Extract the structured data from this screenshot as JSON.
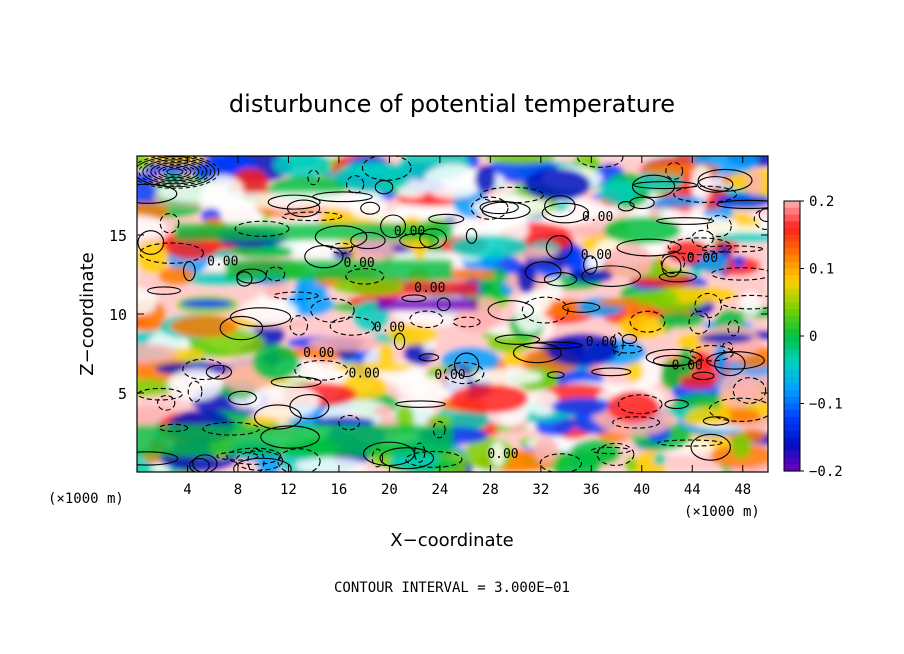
{
  "chart_data": {
    "type": "heatmap",
    "title": "disturbunce of potential temperature",
    "xlabel": "X−coordinate",
    "ylabel": "Z−coordinate",
    "x_unit_left": "(×1000 m)",
    "x_unit_right": "(×1000 m)",
    "xlim": [
      0,
      50
    ],
    "ylim": [
      0,
      20
    ],
    "x_ticks": [
      4,
      8,
      12,
      16,
      20,
      24,
      28,
      32,
      36,
      40,
      44,
      48
    ],
    "y_ticks": [
      5,
      10,
      15
    ],
    "colorbar": {
      "min": -0.2,
      "max": 0.2,
      "ticks": [
        0.2,
        0.1,
        0,
        -0.1,
        -0.2
      ],
      "tick_labels": [
        "0.2",
        "0.1",
        "0",
        "−0.1",
        "−0.2"
      ],
      "colors": [
        "#ffb3b3",
        "#ff2020",
        "#ff7a00",
        "#ffd000",
        "#7ad000",
        "#00c040",
        "#00d0c0",
        "#00a0ff",
        "#0040ff",
        "#0010c0",
        "#7000c0"
      ]
    },
    "contour_labels": [
      {
        "text": "0.00",
        "x": 21.6,
        "y": 15.3
      },
      {
        "text": "0.00",
        "x": 17.6,
        "y": 13.3
      },
      {
        "text": "0.00",
        "x": 23.2,
        "y": 11.7
      },
      {
        "text": "0.00",
        "x": 20.0,
        "y": 9.2
      },
      {
        "text": "0.00",
        "x": 14.4,
        "y": 7.6
      },
      {
        "text": "0.00",
        "x": 18.0,
        "y": 6.3
      },
      {
        "text": "0.00",
        "x": 24.8,
        "y": 6.2
      },
      {
        "text": "0.00",
        "x": 36.4,
        "y": 13.8
      },
      {
        "text": "0.00",
        "x": 44.8,
        "y": 13.6
      },
      {
        "text": "0.00",
        "x": 36.8,
        "y": 8.3
      },
      {
        "text": "0.00",
        "x": 43.6,
        "y": 6.8
      },
      {
        "text": "0.00",
        "x": 36.5,
        "y": 16.2
      },
      {
        "text": "0.00",
        "x": 6.8,
        "y": 13.4
      },
      {
        "text": "0.00",
        "x": 29.0,
        "y": 1.2
      }
    ],
    "grid": false
  },
  "footer": {
    "contour_interval": "CONTOUR INTERVAL = 3.000E−01"
  }
}
